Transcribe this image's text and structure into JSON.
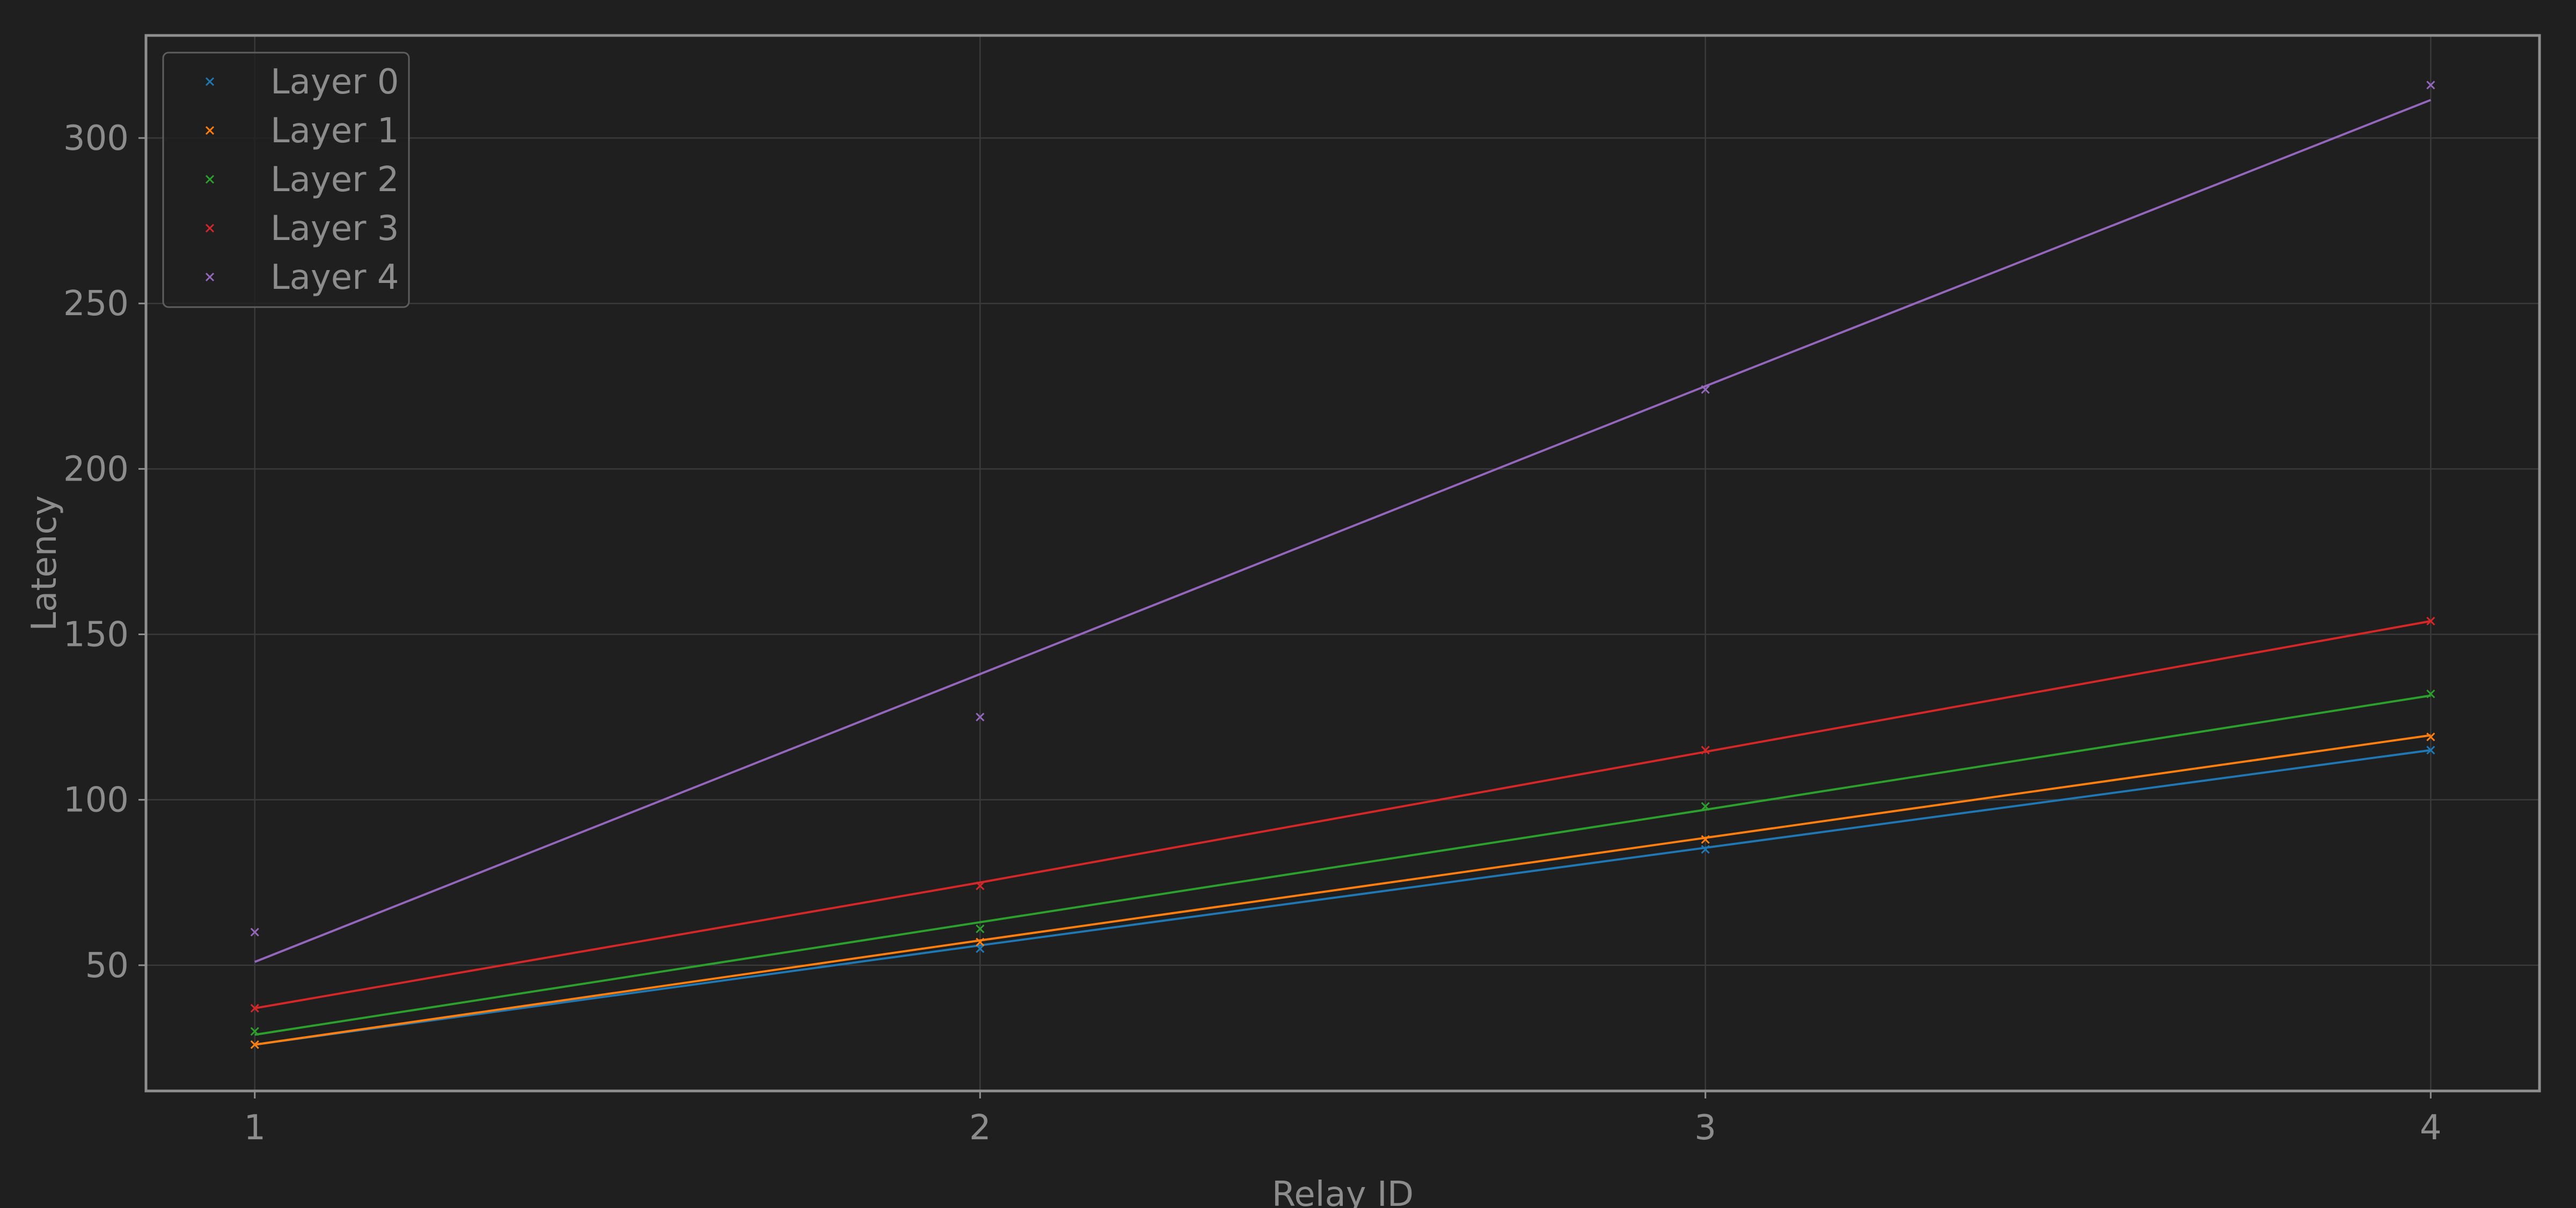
{
  "chart_data": {
    "type": "line",
    "title": "",
    "xlabel": "Relay ID",
    "ylabel": "Latency",
    "x": [
      1,
      2,
      3,
      4
    ],
    "xticks": [
      "1",
      "2",
      "3",
      "4"
    ],
    "yticks": [
      "50",
      "100",
      "150",
      "200",
      "250",
      "300"
    ],
    "xlim": [
      0.85,
      4.15
    ],
    "ylim": [
      12,
      331
    ],
    "grid": true,
    "legend_position": "top-left",
    "markers": "x",
    "fit_lines": true,
    "series": [
      {
        "name": "Layer 0",
        "color": "#1f77b4",
        "points": [
          26,
          55,
          85,
          115
        ],
        "fit": [
          26,
          56,
          85.5,
          115
        ]
      },
      {
        "name": "Layer 1",
        "color": "#ff7f0e",
        "points": [
          26,
          57,
          88,
          119
        ],
        "fit": [
          26,
          57.5,
          88.5,
          119.5
        ]
      },
      {
        "name": "Layer 2",
        "color": "#2ca02c",
        "points": [
          30,
          61,
          98,
          132
        ],
        "fit": [
          29,
          63,
          97,
          131.5
        ]
      },
      {
        "name": "Layer 3",
        "color": "#d62728",
        "points": [
          37,
          74,
          115,
          154
        ],
        "fit": [
          37,
          75,
          114.5,
          154
        ]
      },
      {
        "name": "Layer 4",
        "color": "#9467bd",
        "points": [
          60,
          125,
          224,
          316
        ],
        "fit": [
          51,
          138,
          225,
          311.5
        ]
      }
    ]
  }
}
